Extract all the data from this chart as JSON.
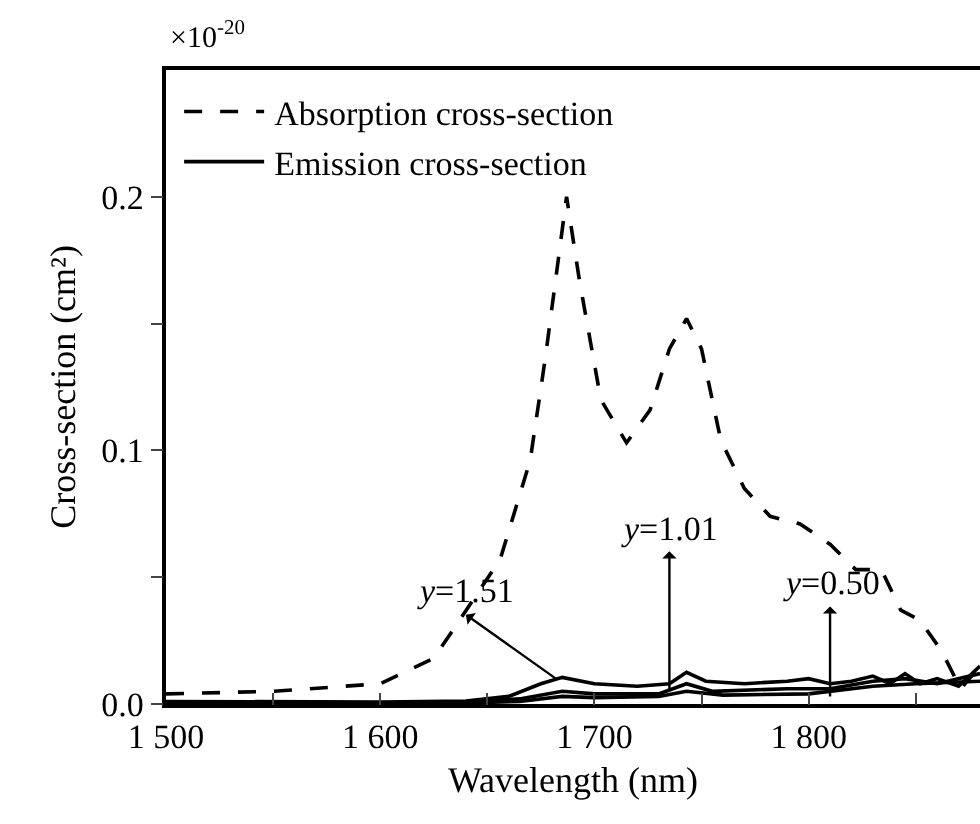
{
  "chart_data": {
    "type": "line",
    "xlabel": "Wavelength (nm)",
    "ylabel": "Cross-section (cm²)",
    "xlim": [
      1500,
      1880
    ],
    "xticks": [
      {
        "value": 1500,
        "label": "1 500"
      },
      {
        "value": 1550,
        "label": null
      },
      {
        "value": 1600,
        "label": "1 600"
      },
      {
        "value": 1650,
        "label": null
      },
      {
        "value": 1700,
        "label": "1 700"
      },
      {
        "value": 1750,
        "label": null
      },
      {
        "value": 1800,
        "label": "1 800"
      },
      {
        "value": 1850,
        "label": null
      }
    ],
    "ylim": [
      0,
      0.25
    ],
    "yticks": [
      {
        "value": 0,
        "label": "0.0"
      },
      {
        "value": 0.05,
        "label": null
      },
      0.1,
      {
        "value": 0.15,
        "label": null
      },
      0.2
    ],
    "legend": "top left",
    "grid": false,
    "series": [
      {
        "name": "Absorption cross-section",
        "color": "#000000",
        "line_style": "dashed",
        "x": [
          1500,
          1550,
          1600,
          1625,
          1637,
          1656,
          1670,
          1677,
          1687,
          1693,
          1703,
          1715,
          1726,
          1735,
          1743,
          1750,
          1759,
          1770,
          1782,
          1796,
          1810,
          1822,
          1834,
          1843,
          1852,
          1862,
          1871,
          1878
        ],
        "values": [
          0.004,
          0.005,
          0.008,
          0.018,
          0.033,
          0.057,
          0.096,
          0.136,
          0.2,
          0.167,
          0.12,
          0.103,
          0.116,
          0.14,
          0.152,
          0.14,
          0.104,
          0.085,
          0.074,
          0.071,
          0.063,
          0.053,
          0.053,
          0.037,
          0.033,
          0.021,
          0.006,
          0.013
        ]
      },
      {
        "name": "Emission cross-section",
        "color": "#000000",
        "line_style": "solid",
        "x": [
          1500,
          1600,
          1640,
          1660,
          1675,
          1685,
          1700,
          1720,
          1735,
          1743,
          1752,
          1770,
          1790,
          1800,
          1810,
          1820,
          1830,
          1838,
          1845,
          1852,
          1860,
          1870,
          1880
        ],
        "values": [
          0.001,
          0.0008,
          0.0012,
          0.003,
          0.008,
          0.0105,
          0.008,
          0.007,
          0.008,
          0.0125,
          0.009,
          0.008,
          0.009,
          0.01,
          0.008,
          0.009,
          0.011,
          0.008,
          0.012,
          0.008,
          0.01,
          0.007,
          0.015
        ]
      },
      {
        "color": "#000000",
        "line_style": "solid",
        "x": [
          1500,
          1600,
          1640,
          1665,
          1685,
          1700,
          1730,
          1743,
          1755,
          1790,
          1810,
          1830,
          1845,
          1860,
          1880
        ],
        "values": [
          0,
          0.0003,
          0.001,
          0.002,
          0.005,
          0.004,
          0.004,
          0.008,
          0.005,
          0.006,
          0.006,
          0.009,
          0.01,
          0.008,
          0.012
        ]
      },
      {
        "color": "#000000",
        "line_style": "solid",
        "x": [
          1500,
          1600,
          1640,
          1665,
          1685,
          1700,
          1730,
          1743,
          1760,
          1800,
          1830,
          1850,
          1880
        ],
        "values": [
          0,
          0.0001,
          0.0004,
          0.001,
          0.003,
          0.0025,
          0.003,
          0.005,
          0.0035,
          0.004,
          0.007,
          0.008,
          0.009
        ]
      }
    ],
    "annotations": [
      "×10$^{-20}$",
      {
        "text": "y=1.51",
        "x": 1682,
        "y": 0.01
      },
      {
        "text": "y=1.01",
        "x": 1735,
        "y": 0.005
      },
      {
        "text": "y=0.50",
        "x": 1810,
        "y": 0.003
      }
    ]
  }
}
